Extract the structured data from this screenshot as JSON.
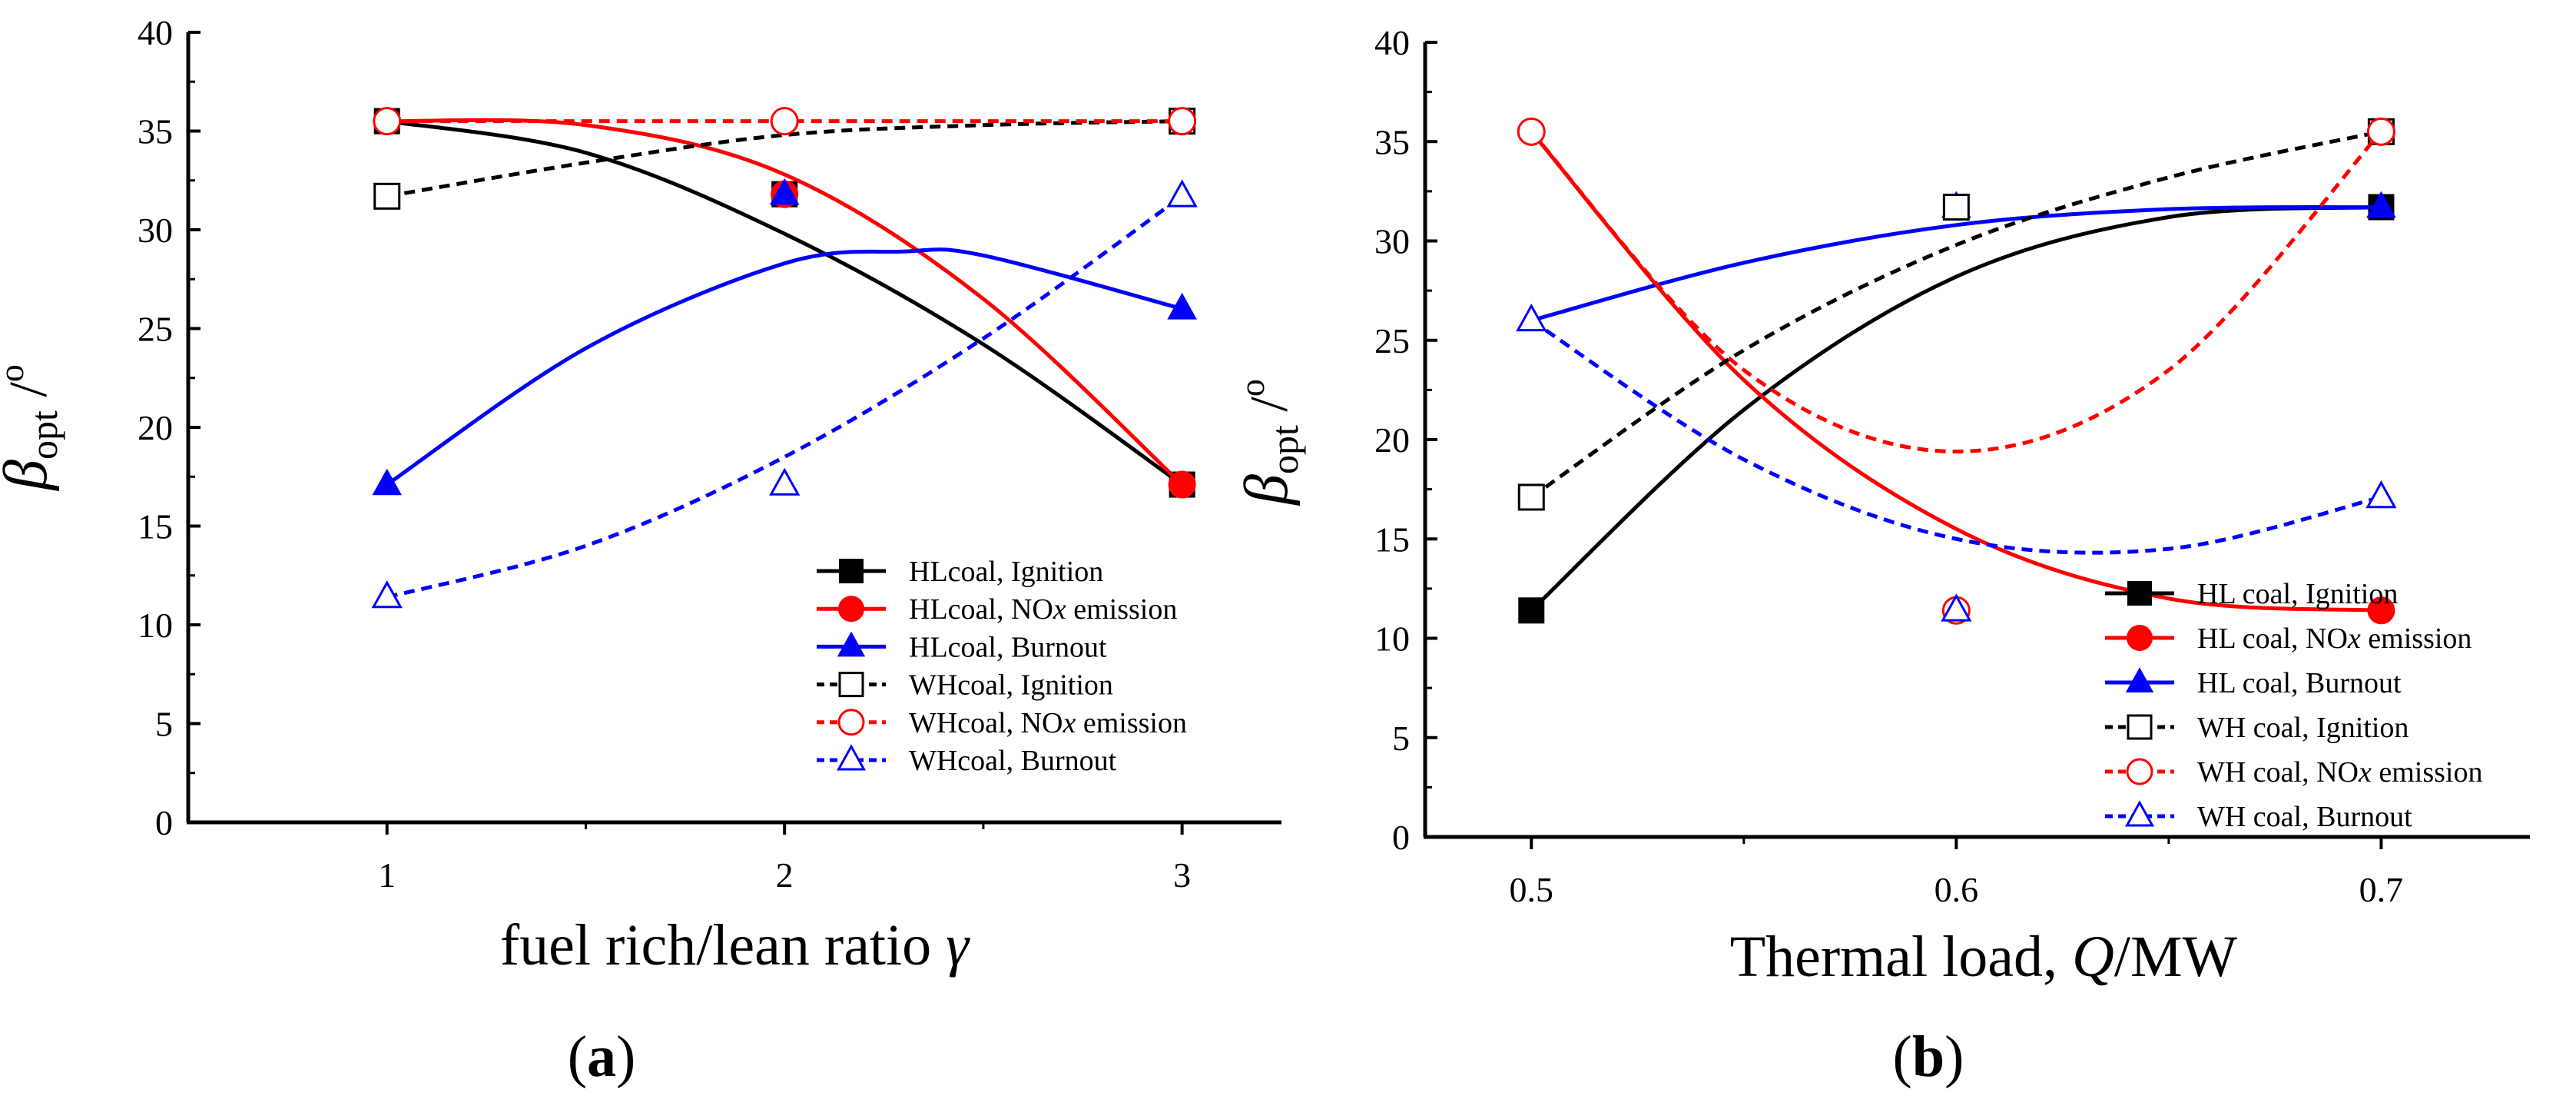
{
  "colors": {
    "black": "#000000",
    "red": "#ff0000",
    "blue": "#0000ff"
  },
  "chart_data": [
    {
      "type": "line",
      "panel_label": "(a)",
      "panel_label_parts": [
        "(",
        "a",
        ")"
      ],
      "xlabel": "fuel rich/lean ratio γ",
      "xlabel_parts": [
        "fuel rich/lean ratio ",
        "γ"
      ],
      "ylabel_parts": [
        "β",
        "opt",
        " /",
        "o"
      ],
      "xlim": [
        0.5,
        3.25
      ],
      "ylim": [
        0,
        40
      ],
      "x_ticks": [
        1,
        2,
        3
      ],
      "x_tick_labels": [
        "1",
        "2",
        "3"
      ],
      "x_minor_ticks": [
        1.5,
        2.5
      ],
      "y_ticks": [
        0,
        5,
        10,
        15,
        20,
        25,
        30,
        35,
        40
      ],
      "y_tick_labels": [
        "0",
        "5",
        "10",
        "15",
        "20",
        "25",
        "30",
        "35",
        "40"
      ],
      "legend_position": "bottom-right",
      "series": [
        {
          "name": "HLcoal, Ignition",
          "name_parts": [
            "HLcoal, Ignition"
          ],
          "color": "#000000",
          "dash": "solid",
          "marker": "square",
          "filled": true,
          "x": [
            1,
            2,
            3
          ],
          "y": [
            35.5,
            31.8,
            17.1
          ],
          "curve": {
            "x": [
              1,
              1.5,
              2,
              2.5,
              3
            ],
            "y": [
              35.5,
              33.9,
              29.8,
              24.2,
              17.1
            ]
          }
        },
        {
          "name": "HLcoal, NOx emission",
          "name_parts": [
            "HLcoal, NO",
            "x",
            " emission"
          ],
          "color": "#ff0000",
          "dash": "solid",
          "marker": "circle",
          "filled": true,
          "x": [
            1,
            2,
            3
          ],
          "y": [
            35.5,
            31.8,
            17.1
          ],
          "curve": {
            "x": [
              1,
              1.5,
              2,
              2.5,
              3
            ],
            "y": [
              35.5,
              35.3,
              32.8,
              26.5,
              17.1
            ]
          }
        },
        {
          "name": "HLcoal, Burnout",
          "name_parts": [
            "HLcoal, Burnout"
          ],
          "color": "#0000ff",
          "dash": "solid",
          "marker": "triangle",
          "filled": true,
          "x": [
            1,
            2,
            3
          ],
          "y": [
            17.1,
            31.8,
            26.0
          ],
          "curve": {
            "x": [
              1,
              1.5,
              2,
              2.3,
              2.5,
              3
            ],
            "y": [
              17.1,
              24.0,
              28.3,
              28.9,
              28.7,
              26.0
            ]
          }
        },
        {
          "name": "WHcoal, Ignition",
          "name_parts": [
            "WHcoal, Ignition"
          ],
          "color": "#000000",
          "dash": "dash",
          "marker": "square",
          "filled": false,
          "x": [
            1,
            3
          ],
          "y": [
            31.7,
            35.5
          ],
          "curve": {
            "x": [
              1,
              1.5,
              2,
              2.5,
              3
            ],
            "y": [
              31.7,
              33.4,
              34.8,
              35.3,
              35.5
            ]
          }
        },
        {
          "name": "WHcoal, NOx emission",
          "name_parts": [
            "WHcoal, NO",
            "x",
            " emission"
          ],
          "color": "#ff0000",
          "dash": "dash",
          "marker": "circle",
          "filled": false,
          "x": [
            1,
            2,
            3
          ],
          "y": [
            35.5,
            35.5,
            35.5
          ],
          "curve": {
            "x": [
              1,
              2,
              3
            ],
            "y": [
              35.5,
              35.5,
              35.5
            ]
          }
        },
        {
          "name": "WHcoal, Burnout",
          "name_parts": [
            "WHcoal, Burnout"
          ],
          "color": "#0000ff",
          "dash": "dash",
          "marker": "triangle",
          "filled": false,
          "x": [
            1,
            2,
            3
          ],
          "y": [
            11.4,
            17.1,
            31.7
          ],
          "curve": {
            "x": [
              1,
              1.5,
              2,
              2.5,
              3
            ],
            "y": [
              11.4,
              14.0,
              18.5,
              24.5,
              31.7
            ]
          }
        }
      ]
    },
    {
      "type": "line",
      "panel_label": "(b)",
      "panel_label_parts": [
        "(",
        "b",
        ")"
      ],
      "xlabel": "Thermal load, Q/MW",
      "xlabel_parts": [
        "Thermal load, ",
        "Q",
        "/MW"
      ],
      "ylabel_parts": [
        "β",
        "opt",
        " /",
        "o"
      ],
      "xlim": [
        0.475,
        0.735
      ],
      "ylim": [
        0,
        40
      ],
      "x_ticks": [
        0.5,
        0.6,
        0.7
      ],
      "x_tick_labels": [
        "0.5",
        "0.6",
        "0.7"
      ],
      "x_minor_ticks": [
        0.55,
        0.65
      ],
      "y_ticks": [
        0,
        5,
        10,
        15,
        20,
        25,
        30,
        35,
        40
      ],
      "y_tick_labels": [
        "0",
        "5",
        "10",
        "15",
        "20",
        "25",
        "30",
        "35",
        "40"
      ],
      "legend_position": "bottom-right",
      "series": [
        {
          "name": "HL coal, Ignition",
          "name_parts": [
            "HL coal, Ignition"
          ],
          "color": "#000000",
          "dash": "solid",
          "marker": "square",
          "filled": true,
          "x": [
            0.5,
            0.6,
            0.7
          ],
          "y": [
            11.4,
            31.7,
            31.7
          ],
          "curve": {
            "x": [
              0.5,
              0.55,
              0.6,
              0.65,
              0.7
            ],
            "y": [
              11.4,
              21.5,
              28.2,
              31.2,
              31.7
            ]
          }
        },
        {
          "name": "HL coal, NOx emission",
          "name_parts": [
            "HL coal, NO",
            "x",
            " emission"
          ],
          "color": "#ff0000",
          "dash": "solid",
          "marker": "circle",
          "filled": true,
          "x": [
            0.5,
            0.6,
            0.7
          ],
          "y": [
            35.5,
            11.4,
            11.4
          ],
          "curve": {
            "x": [
              0.5,
              0.55,
              0.6,
              0.65,
              0.7
            ],
            "y": [
              35.5,
              23.0,
              15.5,
              12.0,
              11.4
            ]
          }
        },
        {
          "name": "HL coal, Burnout",
          "name_parts": [
            "HL coal, Burnout"
          ],
          "color": "#0000ff",
          "dash": "solid",
          "marker": "triangle",
          "filled": true,
          "x": [
            0.5,
            0.6,
            0.7
          ],
          "y": [
            26.0,
            31.7,
            31.7
          ],
          "curve": {
            "x": [
              0.5,
              0.55,
              0.6,
              0.65,
              0.7
            ],
            "y": [
              26.0,
              28.9,
              30.8,
              31.6,
              31.7
            ]
          }
        },
        {
          "name": "WH coal, Ignition",
          "name_parts": [
            "WH coal, Ignition"
          ],
          "color": "#000000",
          "dash": "dash",
          "marker": "square",
          "filled": false,
          "x": [
            0.5,
            0.6,
            0.7
          ],
          "y": [
            17.1,
            31.7,
            35.5
          ],
          "curve": {
            "x": [
              0.5,
              0.55,
              0.6,
              0.65,
              0.7
            ],
            "y": [
              17.1,
              24.5,
              29.8,
              33.2,
              35.5
            ]
          }
        },
        {
          "name": "WH coal, NOx emission",
          "name_parts": [
            "WH coal, NO",
            "x",
            " emission"
          ],
          "color": "#ff0000",
          "dash": "dash",
          "marker": "circle",
          "filled": false,
          "x": [
            0.5,
            0.6,
            0.7
          ],
          "y": [
            35.5,
            11.4,
            35.5
          ],
          "curve": {
            "x": [
              0.5,
              0.55,
              0.6,
              0.65,
              0.7
            ],
            "y": [
              35.5,
              23.5,
              19.4,
              23.5,
              35.5
            ]
          }
        },
        {
          "name": "WH coal, Burnout",
          "name_parts": [
            "WH coal, Burnout"
          ],
          "color": "#0000ff",
          "dash": "dash",
          "marker": "triangle",
          "filled": false,
          "x": [
            0.5,
            0.6,
            0.7
          ],
          "y": [
            26.0,
            11.4,
            17.1
          ],
          "curve": {
            "x": [
              0.5,
              0.55,
              0.6,
              0.65,
              0.7
            ],
            "y": [
              26.0,
              19.0,
              15.0,
              14.5,
              17.1
            ]
          }
        }
      ]
    }
  ]
}
